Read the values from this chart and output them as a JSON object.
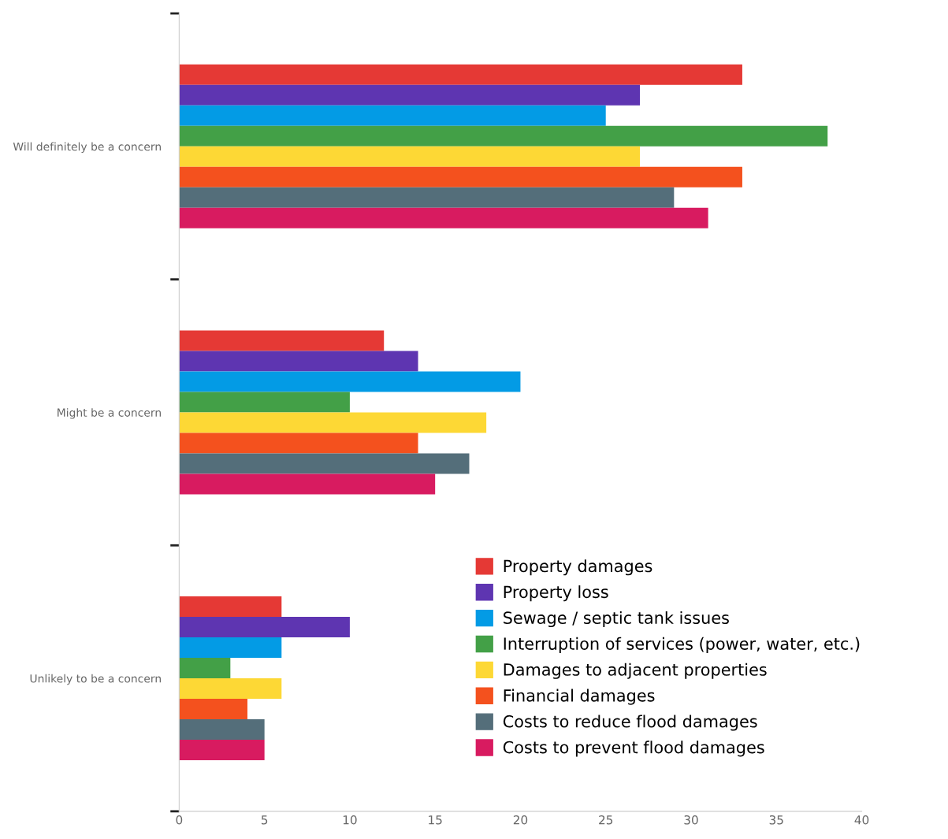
{
  "chart_data": {
    "type": "bar",
    "orientation": "horizontal",
    "categories": [
      "Will definitely be a concern",
      "Might be a concern",
      "Unlikely to be a concern"
    ],
    "series": [
      {
        "name": "Property damages",
        "color": "#e53935",
        "values": [
          33,
          12,
          6
        ]
      },
      {
        "name": "Property loss",
        "color": "#5e35b1",
        "values": [
          27,
          14,
          10
        ]
      },
      {
        "name": "Sewage / septic tank issues",
        "color": "#039be5",
        "values": [
          25,
          20,
          6
        ]
      },
      {
        "name": "Interruption of services (power, water, etc.)",
        "color": "#43a047",
        "values": [
          38,
          10,
          3
        ]
      },
      {
        "name": "Damages to adjacent properties",
        "color": "#fdd835",
        "values": [
          27,
          18,
          6
        ]
      },
      {
        "name": "Financial damages",
        "color": "#f4511e",
        "values": [
          33,
          14,
          4
        ]
      },
      {
        "name": "Costs to reduce flood damages",
        "color": "#546e7a",
        "values": [
          29,
          17,
          5
        ]
      },
      {
        "name": "Costs to prevent flood damages",
        "color": "#d81b60",
        "values": [
          31,
          15,
          5
        ]
      }
    ],
    "xlim": [
      0,
      40
    ],
    "xticks": [
      0,
      5,
      10,
      15,
      20,
      25,
      30,
      35,
      40
    ],
    "grid": false,
    "legend": "bottom right"
  }
}
